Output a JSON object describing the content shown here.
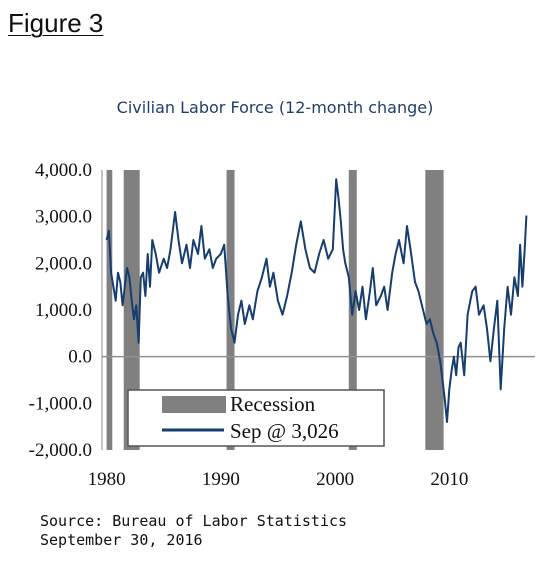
{
  "figure_label": "Figure 3",
  "source_line": "Source: Bureau of Labor Statistics",
  "date_line": "September 30, 2016",
  "colors": {
    "series": "#163d6e",
    "recession": "#808080",
    "zero_line": "#909090",
    "legend_border": "#555555"
  },
  "chart_data": {
    "type": "line",
    "title": "Civilian Labor Force (12-month change)",
    "xlabel": "",
    "ylabel": "",
    "xlim": [
      1979.6,
      2017.5
    ],
    "ylim": [
      -2000,
      4000
    ],
    "y_ticks": [
      "4,000.0",
      "3,000.0",
      "2,000.0",
      "1,000.0",
      "0.0",
      "-1,000.0",
      "-2,000.0"
    ],
    "y_tick_values": [
      4000,
      3000,
      2000,
      1000,
      0,
      -1000,
      -2000
    ],
    "x_ticks": [
      "1980",
      "1990",
      "2000",
      "2010"
    ],
    "x_tick_values": [
      1980,
      1990,
      2000,
      2010
    ],
    "grid": false,
    "legend_position": "bottom-left",
    "recessions": [
      [
        1980.0,
        1980.5
      ],
      [
        1981.5,
        1982.9
      ],
      [
        1990.5,
        1991.2
      ],
      [
        2001.2,
        2001.9
      ],
      [
        2007.9,
        2009.5
      ]
    ],
    "series": [
      {
        "name": "Sep @ 3,026",
        "x": [
          1980.0,
          1980.2,
          1980.4,
          1980.6,
          1980.8,
          1981.0,
          1981.2,
          1981.4,
          1981.6,
          1981.8,
          1982.0,
          1982.2,
          1982.4,
          1982.6,
          1982.8,
          1983.0,
          1983.2,
          1983.4,
          1983.6,
          1983.8,
          1984.0,
          1984.3,
          1984.6,
          1985.0,
          1985.3,
          1985.6,
          1986.0,
          1986.3,
          1986.6,
          1987.0,
          1987.3,
          1987.6,
          1988.0,
          1988.3,
          1988.6,
          1989.0,
          1989.3,
          1989.6,
          1990.0,
          1990.3,
          1990.6,
          1990.9,
          1991.2,
          1991.5,
          1991.8,
          1992.1,
          1992.5,
          1992.8,
          1993.2,
          1993.6,
          1994.0,
          1994.3,
          1994.6,
          1995.0,
          1995.4,
          1995.8,
          1996.2,
          1996.6,
          1997.0,
          1997.4,
          1997.8,
          1998.2,
          1998.6,
          1999.0,
          1999.4,
          1999.8,
          2000.1,
          2000.3,
          2000.5,
          2000.7,
          2000.9,
          2001.2,
          2001.5,
          2001.8,
          2002.1,
          2002.4,
          2002.7,
          2003.0,
          2003.3,
          2003.6,
          2004.0,
          2004.3,
          2004.6,
          2005.0,
          2005.3,
          2005.6,
          2006.0,
          2006.3,
          2006.6,
          2007.0,
          2007.3,
          2007.6,
          2008.0,
          2008.3,
          2008.6,
          2008.9,
          2009.2,
          2009.4,
          2009.6,
          2009.8,
          2010.0,
          2010.2,
          2010.4,
          2010.6,
          2010.8,
          2011.0,
          2011.3,
          2011.6,
          2012.0,
          2012.3,
          2012.6,
          2013.0,
          2013.3,
          2013.6,
          2013.9,
          2014.2,
          2014.5,
          2014.8,
          2015.1,
          2015.4,
          2015.7,
          2016.0,
          2016.2,
          2016.4,
          2016.6,
          2016.75
        ],
        "values": [
          2500,
          2700,
          1800,
          1500,
          1200,
          1800,
          1600,
          1100,
          1500,
          1900,
          1700,
          1200,
          800,
          1100,
          300,
          1700,
          1800,
          1300,
          2200,
          1500,
          2500,
          2200,
          1800,
          2100,
          1900,
          2300,
          3100,
          2500,
          2000,
          2400,
          1900,
          2500,
          2200,
          2800,
          2100,
          2300,
          1900,
          2100,
          2200,
          2400,
          1300,
          600,
          300,
          900,
          1200,
          700,
          1100,
          800,
          1400,
          1700,
          2100,
          1500,
          1800,
          1200,
          900,
          1300,
          1800,
          2400,
          2900,
          2300,
          1900,
          1800,
          2200,
          2500,
          2100,
          2300,
          3800,
          3400,
          2900,
          2300,
          2000,
          1700,
          900,
          1400,
          1000,
          1500,
          800,
          1300,
          1900,
          1100,
          1300,
          1500,
          1000,
          1800,
          2200,
          2500,
          2000,
          2800,
          2300,
          1600,
          1400,
          1100,
          700,
          800,
          500,
          300,
          -100,
          -500,
          -900,
          -1400,
          -700,
          -300,
          0,
          -400,
          200,
          300,
          -400,
          900,
          1400,
          1500,
          900,
          1100,
          600,
          -100,
          600,
          1200,
          -700,
          600,
          1500,
          900,
          1700,
          1300,
          2400,
          1500,
          2300,
          3026
        ]
      }
    ]
  }
}
